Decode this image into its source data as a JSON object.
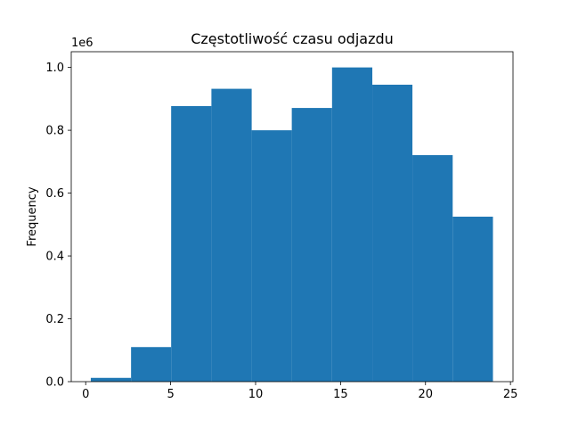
{
  "chart_data": {
    "type": "bar",
    "title": "Częstotliwość czasu odjazdu",
    "xlabel": "",
    "ylabel": "Frequency",
    "y_multiplier_label": "1e6",
    "xlim": [
      -0.85,
      25.15
    ],
    "ylim": [
      0,
      1.05
    ],
    "x_ticks": [
      0,
      5,
      10,
      15,
      20,
      25
    ],
    "y_ticks": [
      0.0,
      0.2,
      0.4,
      0.6,
      0.8,
      1.0
    ],
    "x_tick_labels": [
      "0",
      "5",
      "10",
      "15",
      "20",
      "25"
    ],
    "y_tick_labels": [
      "0.0",
      "0.2",
      "0.4",
      "0.6",
      "0.8",
      "1.0"
    ],
    "grid": false,
    "legend": "none",
    "bar_color": "#1f77b4",
    "bins": [
      {
        "x0": 0.3,
        "x1": 2.67,
        "value": 0.012
      },
      {
        "x0": 2.67,
        "x1": 5.03,
        "value": 0.11
      },
      {
        "x0": 5.03,
        "x1": 7.4,
        "value": 0.877
      },
      {
        "x0": 7.4,
        "x1": 9.77,
        "value": 0.932
      },
      {
        "x0": 9.77,
        "x1": 12.13,
        "value": 0.8
      },
      {
        "x0": 12.13,
        "x1": 14.5,
        "value": 0.871
      },
      {
        "x0": 14.5,
        "x1": 16.87,
        "value": 1.0
      },
      {
        "x0": 16.87,
        "x1": 19.23,
        "value": 0.945
      },
      {
        "x0": 19.23,
        "x1": 21.6,
        "value": 0.721
      },
      {
        "x0": 21.6,
        "x1": 23.97,
        "value": 0.525
      }
    ]
  }
}
